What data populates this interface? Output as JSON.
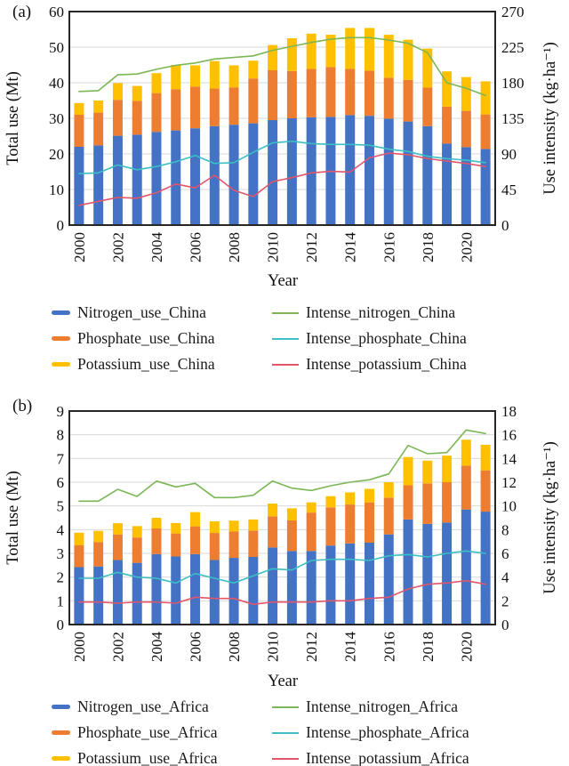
{
  "figure_title": "",
  "chart_data": [
    {
      "id": "china",
      "panel_label": "(a)",
      "type": "stacked-bar+line",
      "xlabel": "Year",
      "x_tick_labels": [
        "2000",
        "2002",
        "2004",
        "2006",
        "2008",
        "2010",
        "2012",
        "2014",
        "2016",
        "2018",
        "2020"
      ],
      "years": [
        2000,
        2001,
        2002,
        2003,
        2004,
        2005,
        2006,
        2007,
        2008,
        2009,
        2010,
        2011,
        2012,
        2013,
        2014,
        2015,
        2016,
        2017,
        2018,
        2019,
        2020,
        2021
      ],
      "left_axis": {
        "label": "Total use (Mt)",
        "min": 0,
        "max": 60,
        "step": 10
      },
      "right_axis": {
        "label": "Use intensity (kg·ha⁻¹)",
        "min": 0,
        "max": 270,
        "step": 45
      },
      "bar_series": [
        {
          "name": "Nitrogen_use_China",
          "color": "#4472C4",
          "values": [
            22.0,
            22.4,
            25.1,
            25.4,
            26.2,
            26.6,
            27.2,
            27.8,
            28.2,
            28.6,
            29.5,
            30.0,
            30.3,
            30.4,
            30.9,
            30.7,
            29.9,
            29.1,
            27.8,
            22.9,
            21.9,
            21.4
          ]
        },
        {
          "name": "Phosphate_use_China",
          "color": "#ED7D31",
          "values": [
            9.0,
            9.2,
            10.1,
            9.5,
            10.9,
            11.6,
            11.7,
            10.6,
            10.5,
            12.6,
            14.0,
            13.3,
            13.6,
            14.0,
            13.0,
            12.7,
            11.5,
            11.7,
            10.9,
            10.4,
            10.2,
            9.7
          ]
        },
        {
          "name": "Potassium_use_China",
          "color": "#FFC000",
          "values": [
            3.3,
            3.4,
            4.7,
            4.2,
            5.6,
            6.8,
            6.0,
            7.7,
            6.2,
            5.0,
            7.1,
            9.2,
            9.9,
            9.1,
            11.5,
            12.0,
            12.1,
            11.3,
            10.9,
            9.9,
            9.5,
            9.3
          ]
        }
      ],
      "line_series": [
        {
          "name": "Intense_nitrogen_China",
          "color": "#7CB656",
          "axis": "right",
          "values": [
            169,
            170,
            190,
            191,
            197,
            202,
            205,
            210,
            212,
            214,
            221,
            226,
            231,
            235,
            237,
            237,
            234,
            230,
            218,
            180,
            173,
            164
          ]
        },
        {
          "name": "Intense_phosphate_China",
          "color": "#3BBFC4",
          "axis": "right",
          "values": [
            65,
            66,
            76,
            70,
            74,
            80,
            88,
            78,
            79,
            92,
            104,
            106,
            103,
            102,
            102,
            101,
            96,
            93,
            87,
            84,
            82,
            79
          ]
        },
        {
          "name": "Intense_potassium_China",
          "color": "#E0566B",
          "axis": "right",
          "values": [
            25,
            30,
            35,
            34,
            41,
            52,
            47,
            63,
            44,
            36,
            55,
            60,
            66,
            68,
            67,
            85,
            91,
            89,
            84,
            81,
            78,
            74
          ]
        }
      ]
    },
    {
      "id": "africa",
      "panel_label": "(b)",
      "type": "stacked-bar+line",
      "xlabel": "Year",
      "x_tick_labels": [
        "2000",
        "2002",
        "2004",
        "2006",
        "2008",
        "2010",
        "2012",
        "2014",
        "2016",
        "2018",
        "2020"
      ],
      "years": [
        2000,
        2001,
        2002,
        2003,
        2004,
        2005,
        2006,
        2007,
        2008,
        2009,
        2010,
        2011,
        2012,
        2013,
        2014,
        2015,
        2016,
        2017,
        2018,
        2019,
        2020,
        2021
      ],
      "left_axis": {
        "label": "Total use (Mt)",
        "min": 0,
        "max": 9,
        "step": 1
      },
      "right_axis": {
        "label": "Use intensity (kg·ha⁻¹)",
        "min": 0,
        "max": 18,
        "step": 2
      },
      "bar_series": [
        {
          "name": "Nitrogen_use_Africa",
          "color": "#4472C4",
          "values": [
            2.42,
            2.45,
            2.72,
            2.6,
            2.97,
            2.87,
            2.97,
            2.72,
            2.81,
            2.85,
            3.25,
            3.1,
            3.1,
            3.33,
            3.42,
            3.45,
            3.8,
            4.43,
            4.24,
            4.3,
            4.85,
            4.76
          ]
        },
        {
          "name": "Phosphate_use_Africa",
          "color": "#ED7D31",
          "values": [
            0.93,
            1.03,
            1.08,
            1.07,
            1.08,
            0.97,
            1.17,
            1.14,
            1.11,
            1.11,
            1.31,
            1.29,
            1.62,
            1.61,
            1.64,
            1.7,
            1.55,
            1.44,
            1.71,
            1.7,
            1.85,
            1.74
          ]
        },
        {
          "name": "Potassium_use_Africa",
          "color": "#FFC000",
          "values": [
            0.52,
            0.47,
            0.47,
            0.48,
            0.45,
            0.44,
            0.6,
            0.49,
            0.46,
            0.47,
            0.54,
            0.51,
            0.43,
            0.47,
            0.51,
            0.57,
            0.65,
            1.19,
            0.96,
            1.12,
            1.09,
            1.08
          ]
        }
      ],
      "line_series": [
        {
          "name": "Intense_nitrogen_Africa",
          "color": "#7CB656",
          "axis": "right",
          "values": [
            10.4,
            10.4,
            11.4,
            10.8,
            12.1,
            11.6,
            11.9,
            10.7,
            10.7,
            10.9,
            12.1,
            11.5,
            11.3,
            11.7,
            12.0,
            12.2,
            12.7,
            15.1,
            14.4,
            14.5,
            16.4,
            16.1
          ]
        },
        {
          "name": "Intense_phosphate_Africa",
          "color": "#3BBFC4",
          "axis": "right",
          "values": [
            3.9,
            3.9,
            4.4,
            4.0,
            3.9,
            3.5,
            4.3,
            3.9,
            3.5,
            4.1,
            4.7,
            4.6,
            5.4,
            5.5,
            5.5,
            5.4,
            5.8,
            5.9,
            5.7,
            6.0,
            6.2,
            6.0
          ]
        },
        {
          "name": "Intense_potassium_Africa",
          "color": "#E0566B",
          "axis": "right",
          "values": [
            1.9,
            1.9,
            1.8,
            1.9,
            1.9,
            1.8,
            2.3,
            2.2,
            2.2,
            1.7,
            1.9,
            1.9,
            1.9,
            2.0,
            2.0,
            2.2,
            2.3,
            3.0,
            3.4,
            3.5,
            3.7,
            3.4
          ]
        }
      ]
    }
  ],
  "style": {
    "gridline_color": "#D9D9D9",
    "frame_color": "#262626",
    "text_color": "#111111"
  }
}
